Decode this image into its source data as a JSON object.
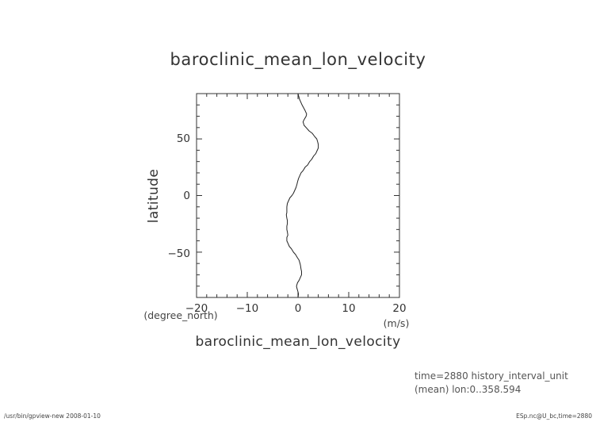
{
  "chart_data": {
    "type": "line",
    "title": "baroclinic_mean_lon_velocity",
    "xlabel": "baroclinic_mean_lon_velocity",
    "xunit": "(m/s)",
    "ylabel": "latitude",
    "yunit": "(degree_north)",
    "xlim": [
      -20,
      20
    ],
    "ylim": [
      -90,
      90
    ],
    "xticks": [
      -20,
      -10,
      0,
      10,
      20
    ],
    "yticks": [
      -50,
      0,
      50
    ],
    "xtick_labels": [
      "−20",
      "−10",
      "0",
      "10",
      "20"
    ],
    "ytick_labels": [
      "−50",
      "0",
      "50"
    ],
    "grid": false,
    "series": [
      {
        "lat": [
          90,
          85,
          80,
          75,
          72,
          70,
          67,
          65,
          62,
          60,
          57,
          55,
          52,
          50,
          47,
          45,
          42,
          40,
          37,
          35,
          32,
          30,
          27,
          25,
          22,
          20,
          17,
          15,
          12,
          10,
          7,
          5,
          2,
          0,
          -2,
          -5,
          -7,
          -10,
          -12,
          -15,
          -17,
          -20,
          -22,
          -25,
          -27,
          -30,
          -32,
          -35,
          -37,
          -40,
          -42,
          -45,
          -47,
          -50,
          -52,
          -55,
          -57,
          -60,
          -62,
          -65,
          -67,
          -70,
          -72,
          -75,
          -77,
          -80,
          -82,
          -85,
          -87,
          -90
        ],
        "u": [
          0.0,
          0.3,
          0.8,
          1.4,
          1.7,
          1.6,
          1.2,
          1.0,
          1.2,
          1.6,
          2.2,
          2.8,
          3.3,
          3.7,
          3.9,
          4.0,
          4.0,
          3.8,
          3.5,
          3.1,
          2.7,
          2.3,
          1.9,
          1.4,
          1.0,
          0.6,
          0.3,
          0.1,
          -0.1,
          -0.2,
          -0.4,
          -0.6,
          -0.9,
          -1.2,
          -1.6,
          -1.9,
          -2.1,
          -2.2,
          -2.2,
          -2.2,
          -2.3,
          -2.2,
          -2.1,
          -2.1,
          -2.2,
          -2.2,
          -2.1,
          -2.0,
          -2.2,
          -2.2,
          -2.0,
          -1.7,
          -1.3,
          -0.9,
          -0.5,
          -0.1,
          0.2,
          0.4,
          0.5,
          0.6,
          0.7,
          0.7,
          0.5,
          0.2,
          -0.1,
          -0.3,
          -0.2,
          0.0,
          0.1,
          0.0
        ]
      }
    ]
  },
  "info": {
    "line1": "time=2880 history_interval_unit",
    "line2": "(mean) lon:0..358.594"
  },
  "footer": {
    "left": "/usr/bin/gpview-new  2008-01-10",
    "right": "ESp.nc@U_bc,time=2880"
  }
}
